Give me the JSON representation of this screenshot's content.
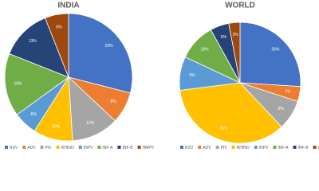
{
  "chart_data": [
    {
      "type": "pie",
      "title": "INDIA",
      "categories": [
        "RSV",
        "ADV",
        "PIV",
        "RHINO",
        "INPV",
        "INF-A",
        "INF-B",
        "HMPV"
      ],
      "colors": [
        "#4472c4",
        "#ed7d31",
        "#a5a5a5",
        "#ffc000",
        "#5b9bd5",
        "#70ad47",
        "#264478",
        "#9e480e"
      ],
      "values": [
        29,
        8,
        12,
        10,
        6,
        16,
        13,
        6
      ],
      "value_labels": [
        "29%",
        "8%",
        "12%",
        "10%",
        "6%",
        "16%",
        "13%",
        "6%"
      ]
    },
    {
      "type": "pie",
      "title": "WORLD",
      "categories": [
        "RSV",
        "ADV",
        "PIV",
        "RHINO",
        "INPV",
        "INF-A",
        "INF-B",
        "HMPV"
      ],
      "colors": [
        "#4472c4",
        "#ed7d31",
        "#a5a5a5",
        "#ffc000",
        "#5b9bd5",
        "#70ad47",
        "#264478",
        "#9e480e"
      ],
      "values": [
        26,
        4,
        8,
        35,
        9,
        10,
        5,
        3
      ],
      "value_labels": [
        "26%",
        "4%",
        "8%",
        "35%",
        "9%",
        "10%",
        "5%",
        "3%"
      ]
    }
  ]
}
